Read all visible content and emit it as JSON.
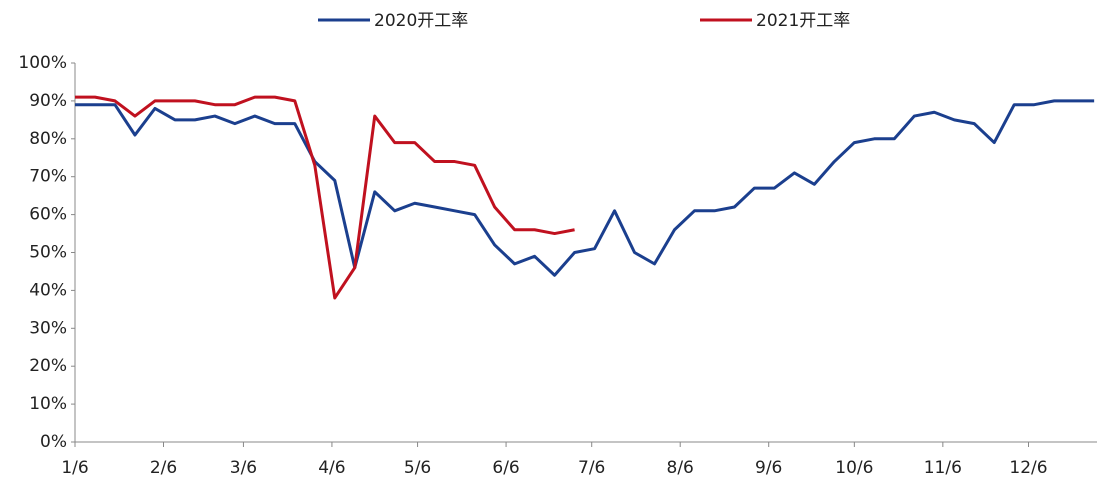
{
  "chart_data": {
    "type": "line",
    "x": [
      0,
      7,
      14,
      21,
      28,
      35,
      42,
      49,
      56,
      63,
      70,
      77,
      84,
      91,
      98,
      105,
      112,
      119,
      126,
      133,
      140,
      147,
      154,
      161,
      168,
      175,
      182,
      189,
      196,
      203,
      210,
      217,
      224,
      231,
      238,
      245,
      252,
      259,
      266,
      273,
      280,
      287,
      294,
      301,
      308,
      315,
      322,
      329,
      336,
      343,
      350,
      357
    ],
    "xlim": [
      0,
      358
    ],
    "xticks": [
      {
        "value": 0,
        "label": "1/6"
      },
      {
        "value": 31,
        "label": "2/6"
      },
      {
        "value": 59,
        "label": "3/6"
      },
      {
        "value": 90,
        "label": "4/6"
      },
      {
        "value": 120,
        "label": "5/6"
      },
      {
        "value": 151,
        "label": "6/6"
      },
      {
        "value": 181,
        "label": "7/6"
      },
      {
        "value": 212,
        "label": "8/6"
      },
      {
        "value": 243,
        "label": "9/6"
      },
      {
        "value": 273,
        "label": "10/6"
      },
      {
        "value": 304,
        "label": "11/6"
      },
      {
        "value": 334,
        "label": "12/6"
      }
    ],
    "ylim": [
      0,
      100
    ],
    "yticks": [
      {
        "value": 0,
        "label": "0%"
      },
      {
        "value": 10,
        "label": "10%"
      },
      {
        "value": 20,
        "label": "20%"
      },
      {
        "value": 30,
        "label": "30%"
      },
      {
        "value": 40,
        "label": "40%"
      },
      {
        "value": 50,
        "label": "50%"
      },
      {
        "value": 60,
        "label": "60%"
      },
      {
        "value": 70,
        "label": "70%"
      },
      {
        "value": 80,
        "label": "80%"
      },
      {
        "value": 90,
        "label": "90%"
      },
      {
        "value": 100,
        "label": "100%"
      }
    ],
    "legend": "top",
    "series": [
      {
        "name": "2020开工率",
        "color": "#1b3f8e",
        "values": [
          89,
          89,
          89,
          81,
          88,
          85,
          85,
          86,
          84,
          86,
          84,
          84,
          74,
          69,
          46,
          66,
          61,
          63,
          62,
          61,
          60,
          52,
          47,
          49,
          44,
          50,
          51,
          61,
          50,
          47,
          56,
          61,
          61,
          62,
          67,
          67,
          71,
          68,
          74,
          79,
          80,
          80,
          86,
          87,
          85,
          84,
          79,
          89,
          89,
          90,
          90,
          90
        ]
      },
      {
        "name": "2021开工率",
        "color": "#c0111f",
        "values": [
          91,
          91,
          90,
          86,
          90,
          90,
          90,
          89,
          89,
          91,
          91,
          90,
          73,
          38,
          46,
          86,
          79,
          79,
          74,
          74,
          73,
          62,
          56,
          56,
          55,
          56,
          null,
          null,
          null,
          null,
          null,
          null,
          null,
          null,
          null,
          null,
          null,
          null,
          null,
          null,
          null,
          null,
          null,
          null,
          null,
          null,
          null,
          null,
          null,
          null,
          null,
          null
        ]
      }
    ]
  }
}
